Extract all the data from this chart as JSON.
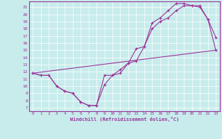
{
  "xlabel": "Windchill (Refroidissement éolien,°C)",
  "bg_color": "#c8ecec",
  "line_color": "#993399",
  "grid_color": "#ffffff",
  "xlim": [
    -0.5,
    23.5
  ],
  "ylim": [
    6.5,
    21.8
  ],
  "xticks": [
    0,
    1,
    2,
    3,
    4,
    5,
    6,
    7,
    8,
    9,
    10,
    11,
    12,
    13,
    14,
    15,
    16,
    17,
    18,
    19,
    20,
    21,
    22,
    23
  ],
  "yticks": [
    7,
    8,
    9,
    10,
    11,
    12,
    13,
    14,
    15,
    16,
    17,
    18,
    19,
    20,
    21
  ],
  "line1_x": [
    0,
    1,
    2,
    3,
    4,
    5,
    6,
    7,
    8,
    9,
    10,
    11,
    12,
    13,
    14,
    15,
    16,
    17,
    18,
    19,
    20,
    21,
    22,
    23
  ],
  "line1_y": [
    11.8,
    11.5,
    11.5,
    10.0,
    9.3,
    9.0,
    7.8,
    7.3,
    7.3,
    11.5,
    11.5,
    12.3,
    13.2,
    13.5,
    15.5,
    18.0,
    19.0,
    19.5,
    20.5,
    21.2,
    21.2,
    21.0,
    19.3,
    16.8
  ],
  "line2_x": [
    0,
    1,
    2,
    3,
    4,
    5,
    6,
    7,
    8,
    9,
    10,
    11,
    12,
    13,
    14,
    15,
    16,
    17,
    18,
    19,
    20,
    21,
    22,
    23
  ],
  "line2_y": [
    11.8,
    11.5,
    11.5,
    10.0,
    9.3,
    9.0,
    7.8,
    7.3,
    7.3,
    10.2,
    11.5,
    11.8,
    13.2,
    15.2,
    15.5,
    18.8,
    19.5,
    20.5,
    21.5,
    21.5,
    21.2,
    21.2,
    19.3,
    15.0
  ],
  "line3_x": [
    0,
    23
  ],
  "line3_y": [
    11.8,
    15.0
  ]
}
